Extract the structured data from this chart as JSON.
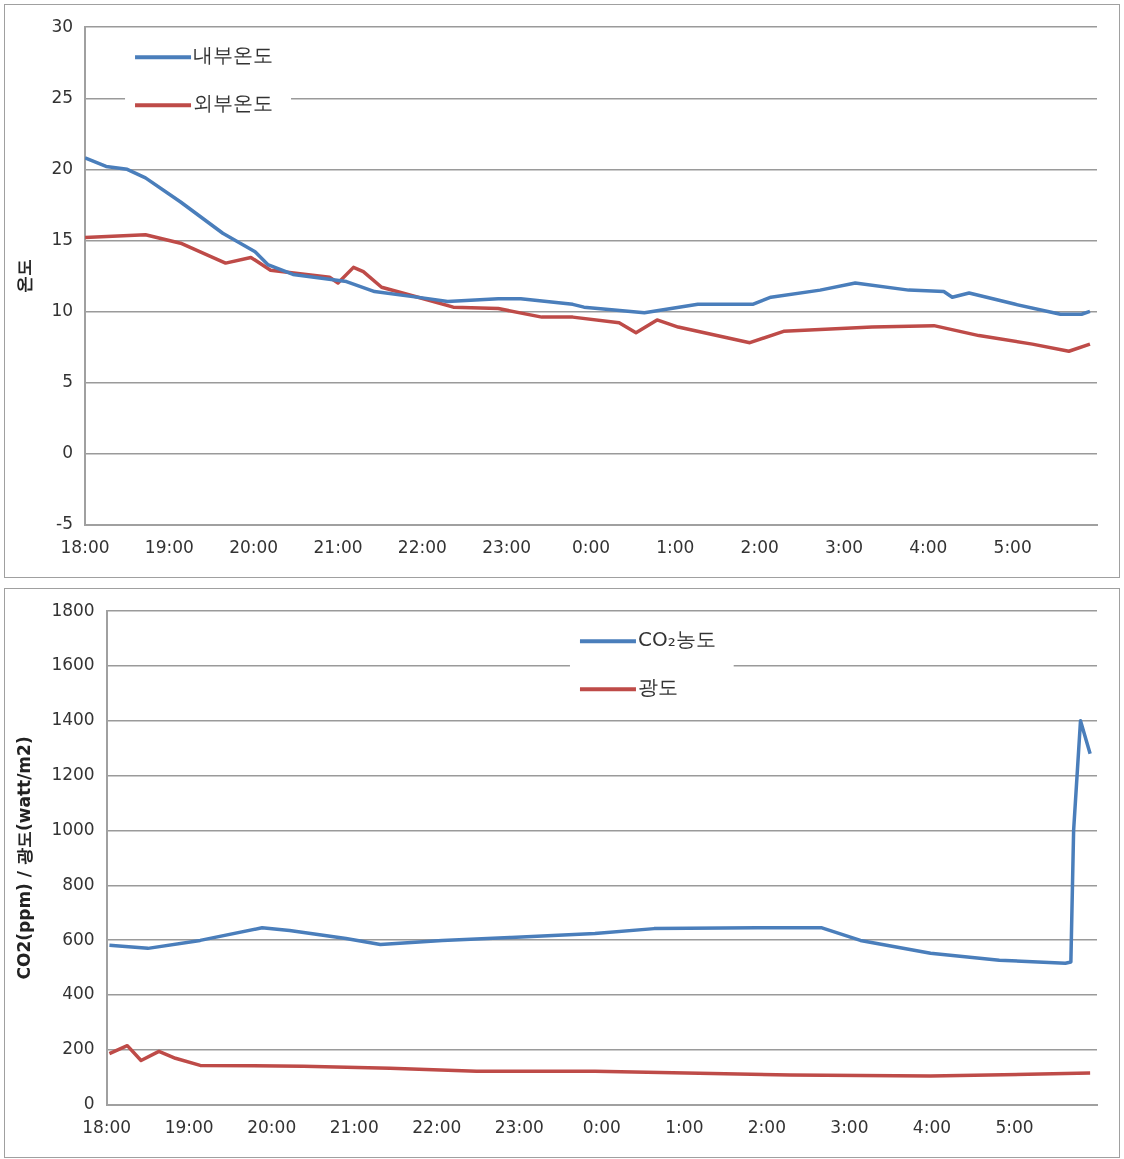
{
  "chart_data": [
    {
      "type": "line",
      "ylabel": "온도",
      "xlim": [
        "2000-01-01T18:00",
        "2000-01-02T06:00"
      ],
      "xticks": [
        {
          "value": "2000-01-01T18:00",
          "label": "18:00"
        },
        {
          "value": "2000-01-01T19:00",
          "label": "19:00"
        },
        {
          "value": "2000-01-01T20:00",
          "label": "20:00"
        },
        {
          "value": "2000-01-01T21:00",
          "label": "21:00"
        },
        {
          "value": "2000-01-01T22:00",
          "label": "22:00"
        },
        {
          "value": "2000-01-01T23:00",
          "label": "23:00"
        },
        {
          "value": "2000-01-02T00:00",
          "label": "0:00"
        },
        {
          "value": "2000-01-02T01:00",
          "label": "1:00"
        },
        {
          "value": "2000-01-02T02:00",
          "label": "2:00"
        },
        {
          "value": "2000-01-02T03:00",
          "label": "3:00"
        },
        {
          "value": "2000-01-02T04:00",
          "label": "4:00"
        },
        {
          "value": "2000-01-02T05:00",
          "label": "5:00"
        }
      ],
      "ylim": [
        -5,
        30
      ],
      "yticks": [
        -5,
        0,
        5,
        10,
        15,
        20,
        25,
        30
      ],
      "grid": "y",
      "legend": "top left",
      "marker": "none",
      "line_style": "solid",
      "series": [
        {
          "name": "내부온도",
          "color": "#4a7ebb",
          "x": [
            "2000-01-01T18:00",
            "2000-01-01T18:15",
            "2000-01-01T18:30",
            "2000-01-01T18:43",
            "2000-01-01T19:08",
            "2000-01-01T19:38",
            "2000-01-01T20:01",
            "2000-01-01T20:10",
            "2000-01-01T20:28",
            "2000-01-01T21:06",
            "2000-01-01T21:26",
            "2000-01-01T22:04",
            "2000-01-01T22:18",
            "2000-01-01T22:54",
            "2000-01-01T23:10",
            "2000-01-01T23:47",
            "2000-01-01T23:55",
            "2000-01-02T00:38",
            "2000-01-02T01:16",
            "2000-01-02T01:55",
            "2000-01-02T02:08",
            "2000-01-02T02:43",
            "2000-01-02T03:08",
            "2000-01-02T03:46",
            "2000-01-02T04:11",
            "2000-01-02T04:17",
            "2000-01-02T04:29",
            "2000-01-02T05:02",
            "2000-01-02T05:34",
            "2000-01-02T05:49",
            "2000-01-02T05:55"
          ],
          "values": [
            20.8,
            20.2,
            20.0,
            19.4,
            17.7,
            15.5,
            14.2,
            13.3,
            12.6,
            12.1,
            11.4,
            10.9,
            10.7,
            10.9,
            10.9,
            10.5,
            10.3,
            9.9,
            10.5,
            10.5,
            11.0,
            11.5,
            12.0,
            11.5,
            11.4,
            11.0,
            11.3,
            10.5,
            9.8,
            9.8,
            10.0
          ]
        },
        {
          "name": "외부온도",
          "color": "#be4b48",
          "x": [
            "2000-01-01T18:00",
            "2000-01-01T18:43",
            "2000-01-01T19:08",
            "2000-01-01T19:40",
            "2000-01-01T19:58",
            "2000-01-01T20:12",
            "2000-01-01T20:54",
            "2000-01-01T21:00",
            "2000-01-01T21:11",
            "2000-01-01T21:18",
            "2000-01-01T21:31",
            "2000-01-01T22:04",
            "2000-01-01T22:22",
            "2000-01-01T22:54",
            "2000-01-01T23:25",
            "2000-01-01T23:47",
            "2000-01-02T00:20",
            "2000-01-02T00:32",
            "2000-01-02T00:47",
            "2000-01-02T01:02",
            "2000-01-02T01:53",
            "2000-01-02T02:17",
            "2000-01-02T03:20",
            "2000-01-02T04:04",
            "2000-01-02T04:36",
            "2000-01-02T05:14",
            "2000-01-02T05:40",
            "2000-01-02T05:55"
          ],
          "values": [
            15.2,
            15.4,
            14.8,
            13.4,
            13.8,
            12.9,
            12.4,
            12.0,
            13.1,
            12.8,
            11.7,
            10.8,
            10.3,
            10.2,
            9.6,
            9.6,
            9.2,
            8.5,
            9.4,
            8.9,
            7.8,
            8.6,
            8.9,
            9.0,
            8.3,
            7.7,
            7.2,
            7.7
          ]
        }
      ]
    },
    {
      "type": "line",
      "ylabel": "CO2(ppm) / 광도(watt/m2)",
      "xlim": [
        "2000-01-01T18:00",
        "2000-01-02T06:00"
      ],
      "xticks": [
        {
          "value": "2000-01-01T18:00",
          "label": "18:00"
        },
        {
          "value": "2000-01-01T19:00",
          "label": "19:00"
        },
        {
          "value": "2000-01-01T20:00",
          "label": "20:00"
        },
        {
          "value": "2000-01-01T21:00",
          "label": "21:00"
        },
        {
          "value": "2000-01-01T22:00",
          "label": "22:00"
        },
        {
          "value": "2000-01-01T23:00",
          "label": "23:00"
        },
        {
          "value": "2000-01-02T00:00",
          "label": "0:00"
        },
        {
          "value": "2000-01-02T01:00",
          "label": "1:00"
        },
        {
          "value": "2000-01-02T02:00",
          "label": "2:00"
        },
        {
          "value": "2000-01-02T03:00",
          "label": "3:00"
        },
        {
          "value": "2000-01-02T04:00",
          "label": "4:00"
        },
        {
          "value": "2000-01-02T05:00",
          "label": "5:00"
        }
      ],
      "ylim": [
        0,
        1800
      ],
      "yticks": [
        0,
        200,
        400,
        600,
        800,
        1000,
        1200,
        1400,
        1600,
        1800
      ],
      "grid": "y",
      "legend": "top",
      "marker": "none",
      "line_style": "solid",
      "series": [
        {
          "name": "CO₂농도",
          "color": "#4a7ebb",
          "x": [
            "2000-01-01T18:02",
            "2000-01-01T18:30",
            "2000-01-01T19:08",
            "2000-01-01T19:53",
            "2000-01-01T20:13",
            "2000-01-01T20:54",
            "2000-01-01T21:19",
            "2000-01-01T22:04",
            "2000-01-01T22:54",
            "2000-01-01T23:55",
            "2000-01-02T00:38",
            "2000-01-02T01:53",
            "2000-01-02T02:40",
            "2000-01-02T03:08",
            "2000-01-02T03:59",
            "2000-01-02T04:49",
            "2000-01-02T05:37",
            "2000-01-02T05:41",
            "2000-01-02T05:43",
            "2000-01-02T05:48",
            "2000-01-02T05:55"
          ],
          "values": [
            581,
            570,
            599,
            645,
            635,
            606,
            584,
            599,
            610,
            624,
            642,
            645,
            645,
            599,
            552,
            527,
            516,
            520,
            1000,
            1400,
            1280
          ]
        },
        {
          "name": "광도",
          "color": "#be4b48",
          "x": [
            "2000-01-01T18:02",
            "2000-01-01T18:15",
            "2000-01-01T18:25",
            "2000-01-01T18:38",
            "2000-01-01T18:50",
            "2000-01-01T19:08",
            "2000-01-01T20:23",
            "2000-01-01T21:26",
            "2000-01-01T22:29",
            "2000-01-01T23:55",
            "2000-01-02T02:17",
            "2000-01-02T03:59",
            "2000-01-02T05:55"
          ],
          "values": [
            186,
            215,
            161,
            194,
            169,
            143,
            140,
            133,
            122,
            122,
            108,
            104,
            115
          ]
        }
      ]
    }
  ]
}
